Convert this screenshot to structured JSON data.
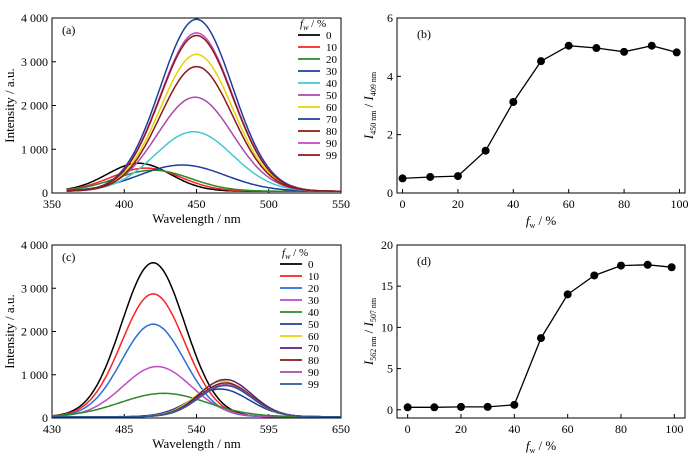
{
  "colors": {
    "c0": "#000000",
    "c10": "#ff2020",
    "c20": "#2a6fd6",
    "c30": "#c24ac2",
    "c40": "#2a8a2a",
    "c50": "#1d3f9a",
    "c60": "#e6d400",
    "c70": "#5a1f7a",
    "c80": "#8a1a1a",
    "c90": "#a84aa8",
    "c99": "#2a5a9a",
    "c_cyan": "#44c8d0"
  },
  "legend_title": {
    "f": "f",
    "w": "w",
    "unit": " / %"
  },
  "chart_data": [
    {
      "panel": "(a)",
      "type": "line",
      "xlabel": "Wavelength / nm",
      "ylabel": "Intensity / a.u.",
      "xlim": [
        350,
        550
      ],
      "ylim": [
        0,
        4000
      ],
      "xticks": [
        "350",
        "400",
        "450",
        "500",
        "550"
      ],
      "yticks": [
        "0",
        "1 000",
        "2 000",
        "3 000",
        "4 000"
      ],
      "legend_title": "fw / %",
      "legend": [
        "0",
        "10",
        "20",
        "30",
        "40",
        "50",
        "60",
        "70",
        "80",
        "90",
        "99"
      ],
      "legend_colors": [
        "c0",
        "c10",
        "c40",
        "c50",
        "c_cyan",
        "c90",
        "c60",
        "c50",
        "c80",
        "c30",
        "c80"
      ],
      "series": [
        {
          "name": "0",
          "peak": 410,
          "amp": 640,
          "sigma": 22,
          "baseline": 40
        },
        {
          "name": "10",
          "peak": 415,
          "amp": 530,
          "sigma": 24,
          "baseline": 40
        },
        {
          "name": "20",
          "peak": 420,
          "amp": 480,
          "sigma": 26,
          "baseline": 40
        },
        {
          "name": "30",
          "peak": 440,
          "amp": 600,
          "sigma": 30,
          "baseline": 40
        },
        {
          "name": "40",
          "peak": 448,
          "amp": 1360,
          "sigma": 27,
          "baseline": 40
        },
        {
          "name": "50",
          "peak": 449,
          "amp": 2150,
          "sigma": 26,
          "baseline": 40
        },
        {
          "name": "60",
          "peak": 450,
          "amp": 3130,
          "sigma": 25,
          "baseline": 40
        },
        {
          "name": "70",
          "peak": 450,
          "amp": 3930,
          "sigma": 25,
          "baseline": 40
        },
        {
          "name": "80",
          "peak": 450,
          "amp": 2850,
          "sigma": 25,
          "baseline": 40
        },
        {
          "name": "90",
          "peak": 450,
          "amp": 3620,
          "sigma": 25,
          "baseline": 40
        },
        {
          "name": "99",
          "peak": 450,
          "amp": 3560,
          "sigma": 25,
          "baseline": 40
        }
      ]
    },
    {
      "panel": "(b)",
      "type": "line",
      "xlabel": "fw / %",
      "ylabel": "I450 nm / I409 nm",
      "xlim": [
        -2,
        102
      ],
      "ylim": [
        0,
        6
      ],
      "xticks": [
        "0",
        "20",
        "40",
        "60",
        "80",
        "100"
      ],
      "yticks": [
        "0",
        "2",
        "4",
        "6"
      ],
      "x": [
        0,
        10,
        20,
        30,
        40,
        50,
        60,
        70,
        80,
        90,
        99
      ],
      "y": [
        0.5,
        0.55,
        0.58,
        1.45,
        3.12,
        4.52,
        5.05,
        4.97,
        4.84,
        5.05,
        4.82
      ]
    },
    {
      "panel": "(c)",
      "type": "line",
      "xlabel": "Wavelength / nm",
      "ylabel": "Intensity / a.u.",
      "xlim": [
        430,
        650
      ],
      "ylim": [
        0,
        4000
      ],
      "xticks": [
        "430",
        "485",
        "540",
        "595",
        "650"
      ],
      "yticks": [
        "0",
        "1 000",
        "2 000",
        "3 000",
        "4 000"
      ],
      "legend_title": "fw / %",
      "legend": [
        "0",
        "10",
        "20",
        "30",
        "40",
        "50",
        "60",
        "70",
        "80",
        "90",
        "99"
      ],
      "legend_colors": [
        "c0",
        "c10",
        "c20",
        "c30",
        "c40",
        "c50",
        "c60",
        "c70",
        "c80",
        "c90",
        "c99"
      ],
      "series": [
        {
          "name": "0",
          "peak": 507,
          "amp": 3560,
          "sigma": 24,
          "baseline": 30
        },
        {
          "name": "10",
          "peak": 507,
          "amp": 2840,
          "sigma": 24,
          "baseline": 30
        },
        {
          "name": "20",
          "peak": 507,
          "amp": 2140,
          "sigma": 24,
          "baseline": 30
        },
        {
          "name": "30",
          "peak": 510,
          "amp": 1160,
          "sigma": 26,
          "baseline": 30
        },
        {
          "name": "40",
          "peak": 515,
          "amp": 540,
          "sigma": 33,
          "baseline": 30
        },
        {
          "name": "50",
          "peak": 558,
          "amp": 640,
          "sigma": 22,
          "baseline": 30
        },
        {
          "name": "60",
          "peak": 560,
          "amp": 820,
          "sigma": 20,
          "baseline": 30
        },
        {
          "name": "70",
          "peak": 562,
          "amp": 860,
          "sigma": 20,
          "baseline": 30
        },
        {
          "name": "80",
          "peak": 562,
          "amp": 780,
          "sigma": 20,
          "baseline": 30
        },
        {
          "name": "90",
          "peak": 562,
          "amp": 740,
          "sigma": 20,
          "baseline": 30
        },
        {
          "name": "99",
          "peak": 562,
          "amp": 720,
          "sigma": 20,
          "baseline": 30
        }
      ]
    },
    {
      "panel": "(d)",
      "type": "line",
      "xlabel": "fw / %",
      "ylabel": "I562 nm / I507 nm",
      "xlim": [
        -4,
        104
      ],
      "ylim": [
        -1,
        20
      ],
      "xticks": [
        "0",
        "20",
        "40",
        "60",
        "80",
        "100"
      ],
      "yticks": [
        "0",
        "5",
        "10",
        "15",
        "20"
      ],
      "x": [
        0,
        10,
        20,
        30,
        40,
        50,
        60,
        70,
        80,
        90,
        99
      ],
      "y": [
        0.3,
        0.3,
        0.35,
        0.35,
        0.6,
        8.7,
        14.0,
        16.3,
        17.5,
        17.6,
        17.3
      ]
    }
  ]
}
